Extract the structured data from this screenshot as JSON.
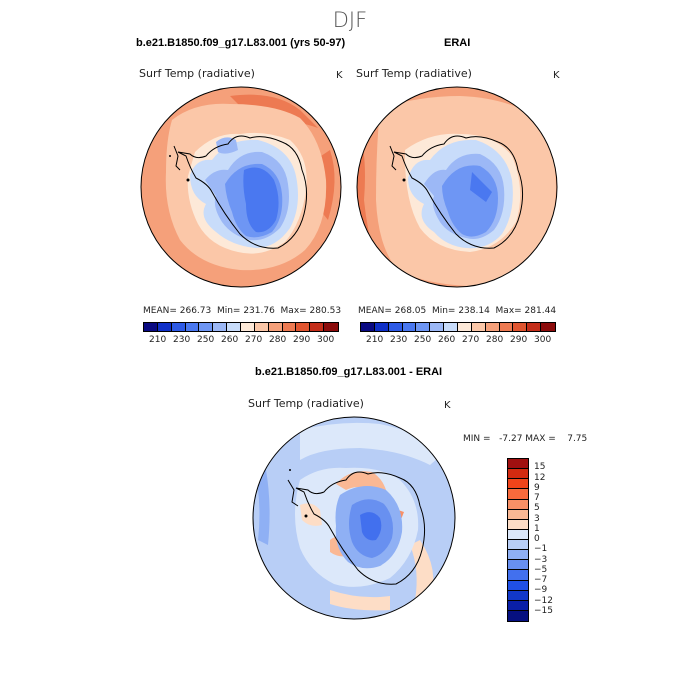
{
  "page": {
    "title": "DJF",
    "colors": {
      "background": "#ffffff",
      "coast": "#000000"
    }
  },
  "left_panel": {
    "heading": "b.e21.B1850.f09_g17.L83.001 (yrs 50-97)",
    "variable": "Surf Temp (radiative)",
    "units": "K",
    "stats": "MEAN= 266.73  Min= 231.76  Max= 280.53"
  },
  "right_panel": {
    "heading": "ERAI",
    "variable": "Surf Temp (radiative)",
    "units": "K",
    "stats": "MEAN= 268.05  Min= 238.14  Max= 281.44"
  },
  "diff_panel": {
    "heading": "b.e21.B1850.f09_g17.L83.001 - ERAI",
    "variable": "Surf Temp (radiative)",
    "units": "K",
    "stats": "MIN =   -7.27 MAX =    7.75"
  },
  "abs_colorbar": {
    "colors": [
      "#0a0a82",
      "#1030c8",
      "#2d5ae6",
      "#4a78f0",
      "#6e96f4",
      "#9cb8f6",
      "#c8dcfa",
      "#fde9d8",
      "#fbc7a8",
      "#f5a07a",
      "#ed7a52",
      "#e05530",
      "#c42e1a",
      "#8c0c0c"
    ],
    "labels": [
      "210",
      "230",
      "250",
      "260",
      "270",
      "280",
      "290",
      "300"
    ]
  },
  "diff_colorbar": {
    "colors": [
      "#a01010",
      "#d22a10",
      "#f0441a",
      "#f86a3c",
      "#f89066",
      "#fab894",
      "#fdddc6",
      "#dce8fa",
      "#b8cef6",
      "#8fb0f4",
      "#6890f0",
      "#4270ee",
      "#2050e6",
      "#1238c8",
      "#0a1fa6",
      "#061080"
    ],
    "labels": [
      "15",
      "12",
      "9",
      "7",
      "5",
      "3",
      "1",
      "0",
      "−1",
      "−3",
      "−5",
      "−7",
      "−9",
      "−12",
      "−15"
    ]
  }
}
